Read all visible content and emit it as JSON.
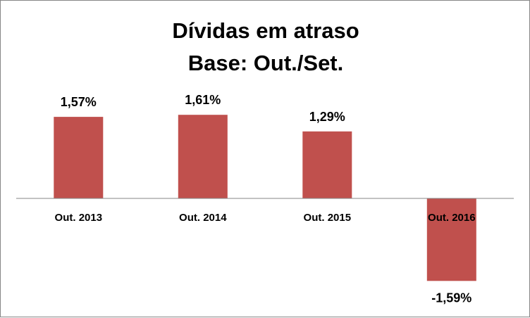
{
  "chart_data": {
    "type": "bar",
    "title": "Dívidas em atraso",
    "subtitle": "Base: Out./Set.",
    "categories": [
      "Out. 2013",
      "Out. 2014",
      "Out. 2015",
      "Out. 2016"
    ],
    "values": [
      1.57,
      1.61,
      1.29,
      -1.59
    ],
    "data_labels": [
      "1,57%",
      "1,61%",
      "1,29%",
      "-1,59%"
    ],
    "xlabel": "",
    "ylabel": "",
    "ylim": [
      -1.8,
      1.8
    ],
    "grid": false,
    "legend": "none",
    "bar_color": "#C0504D",
    "axis_color": "#868686"
  }
}
